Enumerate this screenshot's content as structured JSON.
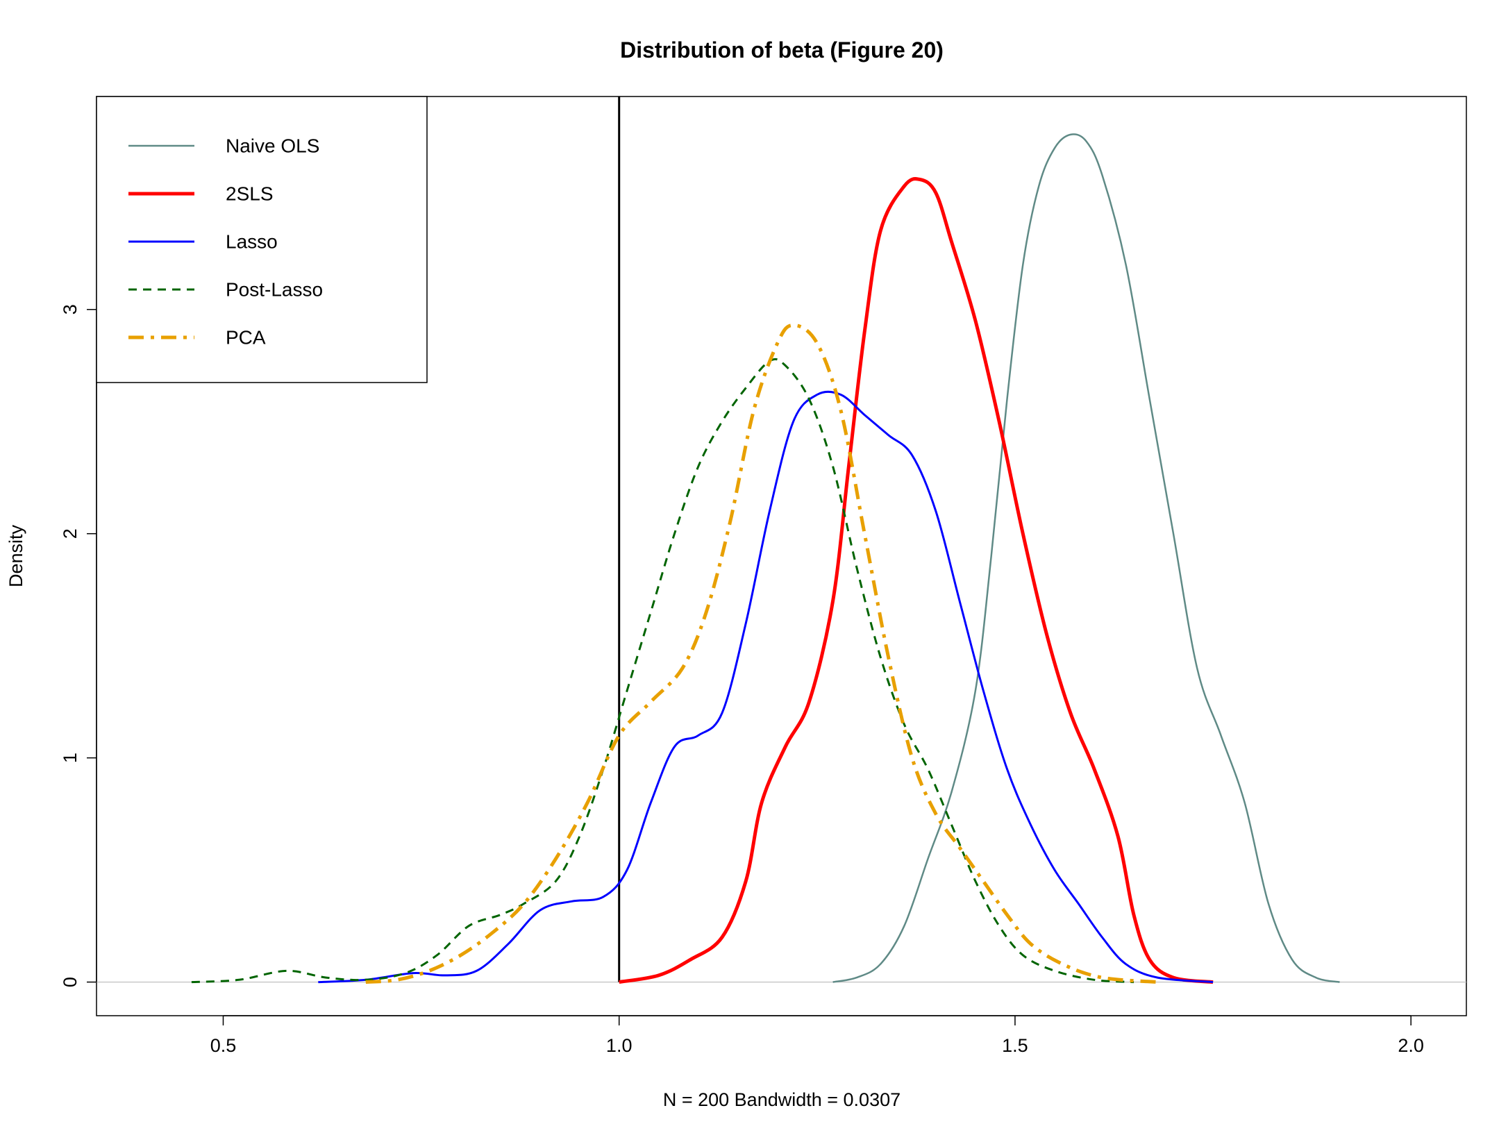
{
  "chart_data": {
    "type": "line",
    "title": "Distribution of beta (Figure 20)",
    "xlabel": "N = 200   Bandwidth = 0.0307",
    "ylabel": "Density",
    "xlim": [
      0.34,
      2.07
    ],
    "ylim": [
      -0.15,
      3.95
    ],
    "x_ticks": [
      0.5,
      1.0,
      1.5,
      2.0
    ],
    "x_tick_labels": [
      "0.5",
      "1.0",
      "1.5",
      "2.0"
    ],
    "y_ticks": [
      0,
      1,
      2,
      3
    ],
    "y_tick_labels": [
      "0",
      "1",
      "2",
      "3"
    ],
    "reference_vline": 1.0,
    "legend_position": "top-left",
    "series": [
      {
        "name": "Naive OLS",
        "color": "#5f8a86",
        "dash": "solid",
        "width": 2.5,
        "points": [
          [
            1.27,
            0
          ],
          [
            1.3,
            0.02
          ],
          [
            1.33,
            0.08
          ],
          [
            1.36,
            0.25
          ],
          [
            1.39,
            0.55
          ],
          [
            1.42,
            0.85
          ],
          [
            1.45,
            1.3
          ],
          [
            1.47,
            1.9
          ],
          [
            1.49,
            2.6
          ],
          [
            1.51,
            3.2
          ],
          [
            1.53,
            3.55
          ],
          [
            1.55,
            3.72
          ],
          [
            1.57,
            3.78
          ],
          [
            1.59,
            3.75
          ],
          [
            1.61,
            3.6
          ],
          [
            1.64,
            3.2
          ],
          [
            1.67,
            2.6
          ],
          [
            1.7,
            2.0
          ],
          [
            1.73,
            1.4
          ],
          [
            1.76,
            1.1
          ],
          [
            1.79,
            0.8
          ],
          [
            1.82,
            0.35
          ],
          [
            1.85,
            0.1
          ],
          [
            1.88,
            0.02
          ],
          [
            1.91,
            0
          ]
        ]
      },
      {
        "name": "2SLS",
        "color": "#ff0000",
        "dash": "solid",
        "width": 5,
        "points": [
          [
            1.0,
            0
          ],
          [
            1.05,
            0.03
          ],
          [
            1.09,
            0.1
          ],
          [
            1.13,
            0.2
          ],
          [
            1.16,
            0.45
          ],
          [
            1.18,
            0.8
          ],
          [
            1.21,
            1.05
          ],
          [
            1.24,
            1.25
          ],
          [
            1.27,
            1.7
          ],
          [
            1.29,
            2.3
          ],
          [
            1.31,
            2.9
          ],
          [
            1.33,
            3.35
          ],
          [
            1.36,
            3.55
          ],
          [
            1.38,
            3.58
          ],
          [
            1.4,
            3.52
          ],
          [
            1.42,
            3.3
          ],
          [
            1.45,
            2.95
          ],
          [
            1.48,
            2.5
          ],
          [
            1.51,
            2.0
          ],
          [
            1.54,
            1.55
          ],
          [
            1.57,
            1.2
          ],
          [
            1.6,
            0.95
          ],
          [
            1.63,
            0.65
          ],
          [
            1.65,
            0.3
          ],
          [
            1.67,
            0.1
          ],
          [
            1.7,
            0.02
          ],
          [
            1.75,
            0
          ]
        ]
      },
      {
        "name": "Lasso",
        "color": "#0000ff",
        "dash": "solid",
        "width": 3,
        "points": [
          [
            0.62,
            0
          ],
          [
            0.68,
            0.01
          ],
          [
            0.74,
            0.04
          ],
          [
            0.78,
            0.03
          ],
          [
            0.82,
            0.05
          ],
          [
            0.86,
            0.17
          ],
          [
            0.9,
            0.32
          ],
          [
            0.94,
            0.36
          ],
          [
            0.98,
            0.38
          ],
          [
            1.01,
            0.5
          ],
          [
            1.04,
            0.8
          ],
          [
            1.07,
            1.05
          ],
          [
            1.1,
            1.1
          ],
          [
            1.13,
            1.2
          ],
          [
            1.16,
            1.6
          ],
          [
            1.19,
            2.1
          ],
          [
            1.22,
            2.5
          ],
          [
            1.25,
            2.62
          ],
          [
            1.28,
            2.62
          ],
          [
            1.31,
            2.53
          ],
          [
            1.34,
            2.44
          ],
          [
            1.37,
            2.35
          ],
          [
            1.4,
            2.1
          ],
          [
            1.43,
            1.7
          ],
          [
            1.46,
            1.3
          ],
          [
            1.49,
            0.95
          ],
          [
            1.52,
            0.7
          ],
          [
            1.55,
            0.5
          ],
          [
            1.58,
            0.35
          ],
          [
            1.61,
            0.2
          ],
          [
            1.64,
            0.08
          ],
          [
            1.68,
            0.02
          ],
          [
            1.75,
            0
          ]
        ]
      },
      {
        "name": "Post-Lasso",
        "color": "#006400",
        "dash": "dashed",
        "width": 3,
        "points": [
          [
            0.46,
            0
          ],
          [
            0.52,
            0.01
          ],
          [
            0.58,
            0.05
          ],
          [
            0.63,
            0.02
          ],
          [
            0.68,
            0.01
          ],
          [
            0.73,
            0.04
          ],
          [
            0.77,
            0.12
          ],
          [
            0.81,
            0.25
          ],
          [
            0.85,
            0.3
          ],
          [
            0.88,
            0.35
          ],
          [
            0.92,
            0.45
          ],
          [
            0.95,
            0.65
          ],
          [
            0.98,
            0.95
          ],
          [
            1.01,
            1.3
          ],
          [
            1.04,
            1.65
          ],
          [
            1.07,
            2.0
          ],
          [
            1.1,
            2.3
          ],
          [
            1.13,
            2.5
          ],
          [
            1.16,
            2.65
          ],
          [
            1.19,
            2.77
          ],
          [
            1.21,
            2.75
          ],
          [
            1.24,
            2.6
          ],
          [
            1.27,
            2.3
          ],
          [
            1.3,
            1.85
          ],
          [
            1.33,
            1.45
          ],
          [
            1.36,
            1.15
          ],
          [
            1.39,
            0.95
          ],
          [
            1.42,
            0.7
          ],
          [
            1.45,
            0.45
          ],
          [
            1.48,
            0.25
          ],
          [
            1.51,
            0.12
          ],
          [
            1.55,
            0.05
          ],
          [
            1.6,
            0.01
          ],
          [
            1.65,
            0
          ]
        ]
      },
      {
        "name": "PCA",
        "color": "#e8a000",
        "dash": "dashdot",
        "width": 5,
        "points": [
          [
            0.68,
            0
          ],
          [
            0.72,
            0.01
          ],
          [
            0.76,
            0.05
          ],
          [
            0.8,
            0.12
          ],
          [
            0.84,
            0.22
          ],
          [
            0.88,
            0.35
          ],
          [
            0.92,
            0.55
          ],
          [
            0.96,
            0.8
          ],
          [
            1.0,
            1.1
          ],
          [
            1.04,
            1.25
          ],
          [
            1.08,
            1.4
          ],
          [
            1.11,
            1.65
          ],
          [
            1.14,
            2.05
          ],
          [
            1.17,
            2.55
          ],
          [
            1.2,
            2.85
          ],
          [
            1.22,
            2.93
          ],
          [
            1.25,
            2.85
          ],
          [
            1.28,
            2.55
          ],
          [
            1.31,
            2.0
          ],
          [
            1.34,
            1.45
          ],
          [
            1.37,
            1.0
          ],
          [
            1.4,
            0.75
          ],
          [
            1.43,
            0.6
          ],
          [
            1.46,
            0.45
          ],
          [
            1.49,
            0.3
          ],
          [
            1.52,
            0.17
          ],
          [
            1.56,
            0.08
          ],
          [
            1.61,
            0.02
          ],
          [
            1.68,
            0
          ]
        ]
      }
    ]
  }
}
